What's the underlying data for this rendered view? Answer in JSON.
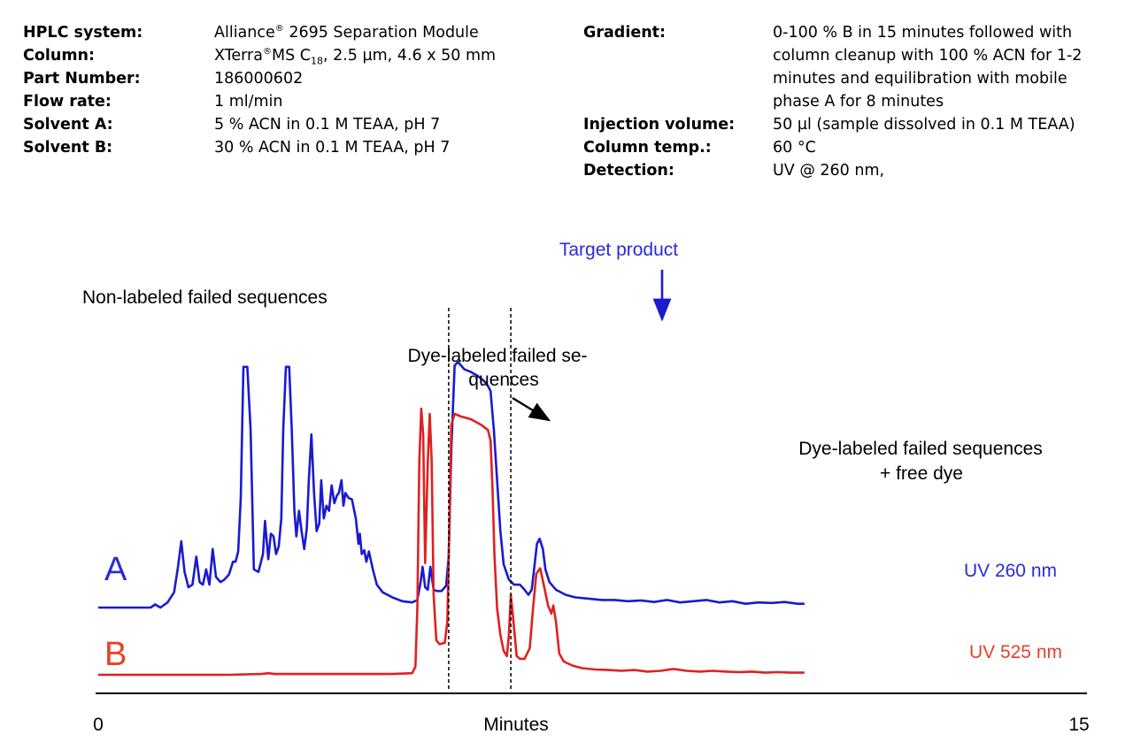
{
  "parameters_left": [
    {
      "label": "HPLC system:",
      "value": "Alliance",
      "sup": "®",
      "value2": " 2695 Separation Module"
    },
    {
      "label": "Column:",
      "value": "XTerra",
      "sup": "®",
      "value2": "MS C",
      "sub": "18",
      "value3": ", 2.5 µm, 4.6 x 50 mm"
    },
    {
      "label": "Part Number:",
      "value": "186000602"
    },
    {
      "label": "Flow rate:",
      "value": "1 ml/min"
    },
    {
      "label": "Solvent A:",
      "value": "5 % ACN in 0.1 M TEAA, pH 7"
    },
    {
      "label": "Solvent B:",
      "value": "30 % ACN in 0.1 M TEAA, pH 7"
    }
  ],
  "parameters_right": [
    {
      "label": "Gradient:",
      "lines": [
        "0-100 % B in 15 minutes followed with",
        "column cleanup with 100 % ACN for 1-2",
        "minutes and equilibration with mobile",
        "phase A for 8 minutes"
      ]
    },
    {
      "label": "Injection volume:",
      "lines": [
        "50 µl (sample dissolved in 0.1 M TEAA)"
      ]
    },
    {
      "label": "Column temp.:",
      "lines": [
        "60 °C"
      ]
    },
    {
      "label": "Detection:",
      "lines": [
        "UV @ 260 nm,"
      ]
    }
  ],
  "colors": {
    "trace_a": "#1a1ad0",
    "trace_b": "#e02020",
    "axis": "#000000",
    "label_a": "#2b2bd8",
    "label_b": "#e8402a"
  },
  "chart_data": {
    "type": "line",
    "xlabel": "Minutes",
    "xlim": [
      0,
      15
    ],
    "x_tick_labels": [
      "0",
      "15"
    ],
    "ylim": [
      0,
      1
    ],
    "series": [
      {
        "name": "UV 260 nm",
        "trace_label": "A",
        "points": [
          [
            0.0,
            0.0
          ],
          [
            0.8,
            0.0
          ],
          [
            0.87,
            0.012
          ],
          [
            0.95,
            0.0
          ],
          [
            1.06,
            0.02
          ],
          [
            1.16,
            0.06
          ],
          [
            1.22,
            0.16
          ],
          [
            1.27,
            0.26
          ],
          [
            1.32,
            0.14
          ],
          [
            1.38,
            0.08
          ],
          [
            1.44,
            0.09
          ],
          [
            1.5,
            0.2
          ],
          [
            1.55,
            0.1
          ],
          [
            1.6,
            0.09
          ],
          [
            1.65,
            0.15
          ],
          [
            1.7,
            0.09
          ],
          [
            1.75,
            0.23
          ],
          [
            1.8,
            0.12
          ],
          [
            1.87,
            0.1
          ],
          [
            1.93,
            0.11
          ],
          [
            2.0,
            0.13
          ],
          [
            2.06,
            0.18
          ],
          [
            2.1,
            0.18
          ],
          [
            2.14,
            0.22
          ],
          [
            2.18,
            0.43
          ],
          [
            2.22,
            0.945
          ],
          [
            2.28,
            0.945
          ],
          [
            2.33,
            0.7
          ],
          [
            2.38,
            0.15
          ],
          [
            2.45,
            0.14
          ],
          [
            2.52,
            0.21
          ],
          [
            2.55,
            0.34
          ],
          [
            2.6,
            0.19
          ],
          [
            2.64,
            0.29
          ],
          [
            2.68,
            0.28
          ],
          [
            2.72,
            0.21
          ],
          [
            2.76,
            0.24
          ],
          [
            2.8,
            0.35
          ],
          [
            2.83,
            0.7
          ],
          [
            2.87,
            0.945
          ],
          [
            2.92,
            0.945
          ],
          [
            2.96,
            0.7
          ],
          [
            3.0,
            0.38
          ],
          [
            3.03,
            0.28
          ],
          [
            3.07,
            0.38
          ],
          [
            3.11,
            0.3
          ],
          [
            3.15,
            0.23
          ],
          [
            3.19,
            0.31
          ],
          [
            3.22,
            0.5
          ],
          [
            3.26,
            0.68
          ],
          [
            3.3,
            0.45
          ],
          [
            3.34,
            0.3
          ],
          [
            3.38,
            0.33
          ],
          [
            3.41,
            0.5
          ],
          [
            3.45,
            0.35
          ],
          [
            3.49,
            0.4
          ],
          [
            3.53,
            0.38
          ],
          [
            3.57,
            0.48
          ],
          [
            3.61,
            0.41
          ],
          [
            3.65,
            0.44
          ],
          [
            3.68,
            0.45
          ],
          [
            3.72,
            0.5
          ],
          [
            3.75,
            0.4
          ],
          [
            3.78,
            0.45
          ],
          [
            3.83,
            0.43
          ],
          [
            3.88,
            0.425
          ],
          [
            3.94,
            0.35
          ],
          [
            3.98,
            0.25
          ],
          [
            4.0,
            0.29
          ],
          [
            4.03,
            0.21
          ],
          [
            4.07,
            0.225
          ],
          [
            4.1,
            0.18
          ],
          [
            4.14,
            0.22
          ],
          [
            4.2,
            0.15
          ],
          [
            4.26,
            0.09
          ],
          [
            4.35,
            0.06
          ],
          [
            4.5,
            0.04
          ],
          [
            4.65,
            0.025
          ],
          [
            4.8,
            0.02
          ],
          [
            4.88,
            0.03
          ],
          [
            4.93,
            0.1
          ],
          [
            4.96,
            0.16
          ],
          [
            5.0,
            0.08
          ],
          [
            5.04,
            0.07
          ],
          [
            5.08,
            0.16
          ],
          [
            5.13,
            0.07
          ],
          [
            5.18,
            0.065
          ],
          [
            5.25,
            0.065
          ],
          [
            5.32,
            0.085
          ],
          [
            5.36,
            0.2
          ],
          [
            5.4,
            0.62
          ],
          [
            5.45,
            0.95
          ],
          [
            5.5,
            0.965
          ],
          [
            5.6,
            0.935
          ],
          [
            5.7,
            0.925
          ],
          [
            5.8,
            0.91
          ],
          [
            5.9,
            0.89
          ],
          [
            5.96,
            0.87
          ],
          [
            6.0,
            0.85
          ],
          [
            6.05,
            0.7
          ],
          [
            6.1,
            0.5
          ],
          [
            6.15,
            0.3
          ],
          [
            6.2,
            0.17
          ],
          [
            6.28,
            0.11
          ],
          [
            6.36,
            0.09
          ],
          [
            6.45,
            0.09
          ],
          [
            6.52,
            0.07
          ],
          [
            6.58,
            0.05
          ],
          [
            6.63,
            0.07
          ],
          [
            6.67,
            0.16
          ],
          [
            6.71,
            0.25
          ],
          [
            6.75,
            0.27
          ],
          [
            6.8,
            0.23
          ],
          [
            6.84,
            0.15
          ],
          [
            6.9,
            0.1
          ],
          [
            7.0,
            0.07
          ],
          [
            7.15,
            0.05
          ],
          [
            7.3,
            0.04
          ],
          [
            7.5,
            0.035
          ],
          [
            7.7,
            0.03
          ],
          [
            7.9,
            0.03
          ],
          [
            8.1,
            0.025
          ],
          [
            8.3,
            0.028
          ],
          [
            8.5,
            0.022
          ],
          [
            8.7,
            0.03
          ],
          [
            8.9,
            0.02
          ],
          [
            9.1,
            0.025
          ],
          [
            9.3,
            0.03
          ],
          [
            9.5,
            0.02
          ],
          [
            9.7,
            0.025
          ],
          [
            9.9,
            0.015
          ],
          [
            10.1,
            0.02
          ],
          [
            10.3,
            0.018
          ],
          [
            10.5,
            0.022
          ],
          [
            10.7,
            0.015
          ],
          [
            10.8,
            0.015
          ]
        ]
      },
      {
        "name": "UV 525 nm",
        "trace_label": "B",
        "points": [
          [
            0.0,
            0.0
          ],
          [
            2.0,
            0.0
          ],
          [
            2.5,
            0.003
          ],
          [
            2.6,
            0.006
          ],
          [
            2.7,
            0.003
          ],
          [
            3.5,
            0.003
          ],
          [
            4.5,
            0.003
          ],
          [
            4.8,
            0.006
          ],
          [
            4.85,
            0.03
          ],
          [
            4.88,
            0.25
          ],
          [
            4.91,
            0.8
          ],
          [
            4.94,
            1.0
          ],
          [
            4.97,
            0.9
          ],
          [
            5.0,
            0.42
          ],
          [
            5.04,
            0.8
          ],
          [
            5.07,
            0.98
          ],
          [
            5.1,
            0.8
          ],
          [
            5.13,
            0.3
          ],
          [
            5.17,
            0.13
          ],
          [
            5.22,
            0.115
          ],
          [
            5.3,
            0.12
          ],
          [
            5.34,
            0.2
          ],
          [
            5.37,
            0.56
          ],
          [
            5.4,
            0.94
          ],
          [
            5.45,
            0.98
          ],
          [
            5.55,
            0.97
          ],
          [
            5.7,
            0.96
          ],
          [
            5.85,
            0.94
          ],
          [
            5.96,
            0.92
          ],
          [
            6.0,
            0.88
          ],
          [
            6.03,
            0.7
          ],
          [
            6.06,
            0.45
          ],
          [
            6.1,
            0.25
          ],
          [
            6.15,
            0.15
          ],
          [
            6.2,
            0.09
          ],
          [
            6.25,
            0.07
          ],
          [
            6.28,
            0.15
          ],
          [
            6.31,
            0.3
          ],
          [
            6.35,
            0.2
          ],
          [
            6.4,
            0.07
          ],
          [
            6.45,
            0.06
          ],
          [
            6.52,
            0.06
          ],
          [
            6.6,
            0.1
          ],
          [
            6.65,
            0.25
          ],
          [
            6.7,
            0.38
          ],
          [
            6.76,
            0.4
          ],
          [
            6.82,
            0.33
          ],
          [
            6.88,
            0.26
          ],
          [
            6.93,
            0.23
          ],
          [
            6.96,
            0.26
          ],
          [
            7.0,
            0.2
          ],
          [
            7.05,
            0.08
          ],
          [
            7.12,
            0.05
          ],
          [
            7.25,
            0.035
          ],
          [
            7.4,
            0.025
          ],
          [
            7.6,
            0.02
          ],
          [
            7.8,
            0.018
          ],
          [
            8.0,
            0.015
          ],
          [
            8.2,
            0.018
          ],
          [
            8.4,
            0.012
          ],
          [
            8.6,
            0.015
          ],
          [
            8.8,
            0.022
          ],
          [
            9.0,
            0.015
          ],
          [
            9.2,
            0.012
          ],
          [
            9.4,
            0.015
          ],
          [
            9.6,
            0.012
          ],
          [
            9.8,
            0.01
          ],
          [
            10.0,
            0.012
          ],
          [
            10.2,
            0.008
          ],
          [
            10.4,
            0.01
          ],
          [
            10.6,
            0.008
          ],
          [
            10.8,
            0.008
          ]
        ]
      }
    ],
    "annotations": {
      "non_labeled": "Non-labeled failed sequences",
      "dye_labeled_1_line1": "Dye-labeled failed se-",
      "dye_labeled_1_line2": "quences",
      "target": "Target product",
      "dye_labeled_2_line1": "Dye-labeled failed sequences",
      "dye_labeled_2_line2": "+ free dye"
    },
    "fraction_window_minutes": [
      5.36,
      6.31
    ]
  }
}
